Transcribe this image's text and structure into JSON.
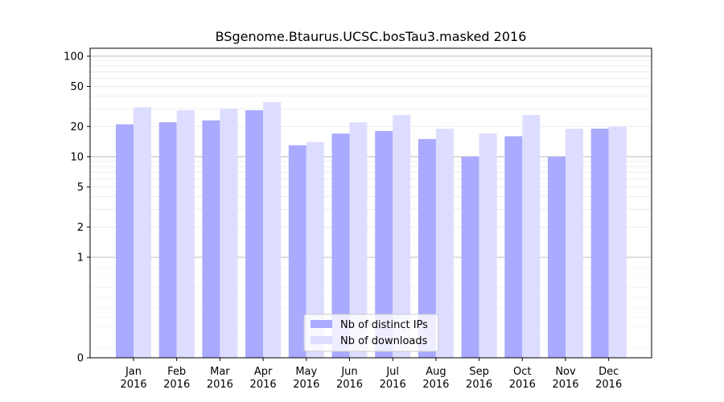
{
  "chart_data": {
    "type": "bar",
    "title": "BSgenome.Btaurus.UCSC.bosTau3.masked 2016",
    "xlabel": "",
    "ylabel": "",
    "y_scale": "symlog",
    "ylim": [
      0,
      120
    ],
    "y_ticks": [
      0,
      1,
      2,
      5,
      10,
      20,
      50,
      100
    ],
    "categories": [
      [
        "Jan",
        "2016"
      ],
      [
        "Feb",
        "2016"
      ],
      [
        "Mar",
        "2016"
      ],
      [
        "Apr",
        "2016"
      ],
      [
        "May",
        "2016"
      ],
      [
        "Jun",
        "2016"
      ],
      [
        "Jul",
        "2016"
      ],
      [
        "Aug",
        "2016"
      ],
      [
        "Sep",
        "2016"
      ],
      [
        "Oct",
        "2016"
      ],
      [
        "Nov",
        "2016"
      ],
      [
        "Dec",
        "2016"
      ]
    ],
    "series": [
      {
        "name": "Nb of distinct IPs",
        "color": "#aaaaff",
        "values": [
          21,
          22,
          23,
          29,
          13,
          17,
          18,
          15,
          10,
          16,
          10,
          19
        ]
      },
      {
        "name": "Nb of downloads",
        "color": "#ddddff",
        "values": [
          31,
          29,
          30,
          35,
          14,
          22,
          26,
          19,
          17,
          26,
          19,
          20
        ]
      }
    ],
    "grid": true,
    "legend_position": "bottom-center"
  }
}
